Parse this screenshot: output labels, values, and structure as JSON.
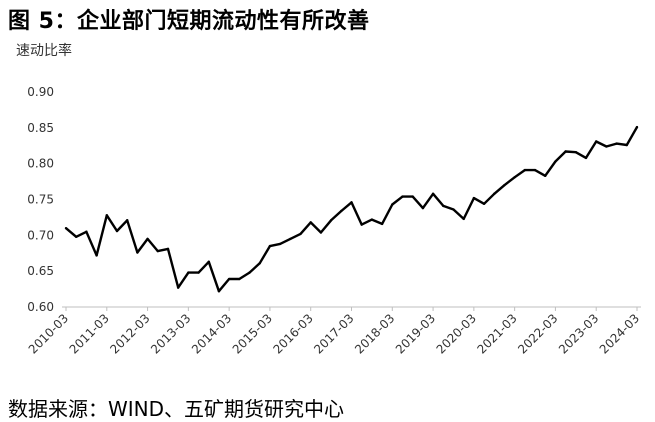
{
  "title": "图 5：企业部门短期流动性有所改善",
  "source": "数据来源：WIND、五矿期货研究中心",
  "chart_data": {
    "type": "line",
    "title": "",
    "xlabel": "",
    "ylabel": "速动比率",
    "ylim": [
      0.6,
      0.9
    ],
    "grid": false,
    "y_ticks": [
      "0.60",
      "0.65",
      "0.70",
      "0.75",
      "0.80",
      "0.85",
      "0.90"
    ],
    "x_ticks": [
      "2010-03",
      "2011-03",
      "2012-03",
      "2013-03",
      "2014-03",
      "2015-03",
      "2016-03",
      "2017-03",
      "2018-03",
      "2019-03",
      "2020-03",
      "2021-03",
      "2022-03",
      "2023-03",
      "2024-03"
    ],
    "series": [
      {
        "name": "",
        "color": "#000000",
        "x": [
          "2010-03",
          "2010-06",
          "2010-09",
          "2010-12",
          "2011-03",
          "2011-06",
          "2011-09",
          "2011-12",
          "2012-03",
          "2012-06",
          "2012-09",
          "2012-12",
          "2013-03",
          "2013-06",
          "2013-09",
          "2013-12",
          "2014-03",
          "2014-06",
          "2014-09",
          "2014-12",
          "2015-03",
          "2015-06",
          "2015-09",
          "2015-12",
          "2016-03",
          "2016-06",
          "2016-09",
          "2016-12",
          "2017-03",
          "2017-06",
          "2017-09",
          "2017-12",
          "2018-03",
          "2018-06",
          "2018-09",
          "2018-12",
          "2019-03",
          "2019-06",
          "2019-09",
          "2019-12",
          "2020-03",
          "2020-06",
          "2020-09",
          "2020-12",
          "2021-03",
          "2021-06",
          "2021-09",
          "2021-12",
          "2022-03",
          "2022-06",
          "2022-09",
          "2022-12",
          "2023-03",
          "2023-06",
          "2023-09",
          "2023-12",
          "2024-03"
        ],
        "values": [
          0.71,
          0.698,
          0.705,
          0.672,
          0.728,
          0.706,
          0.721,
          0.676,
          0.695,
          0.678,
          0.681,
          0.627,
          0.648,
          0.648,
          0.663,
          0.622,
          0.639,
          0.639,
          0.648,
          0.661,
          0.685,
          0.688,
          0.695,
          0.702,
          0.718,
          0.704,
          0.721,
          0.734,
          0.746,
          0.715,
          0.722,
          0.716,
          0.743,
          0.754,
          0.754,
          0.738,
          0.758,
          0.741,
          0.736,
          0.723,
          0.752,
          0.744,
          0.758,
          0.77,
          0.781,
          0.791,
          0.791,
          0.783,
          0.803,
          0.817,
          0.816,
          0.808,
          0.831,
          0.824,
          0.828,
          0.826,
          0.851
        ]
      }
    ]
  }
}
